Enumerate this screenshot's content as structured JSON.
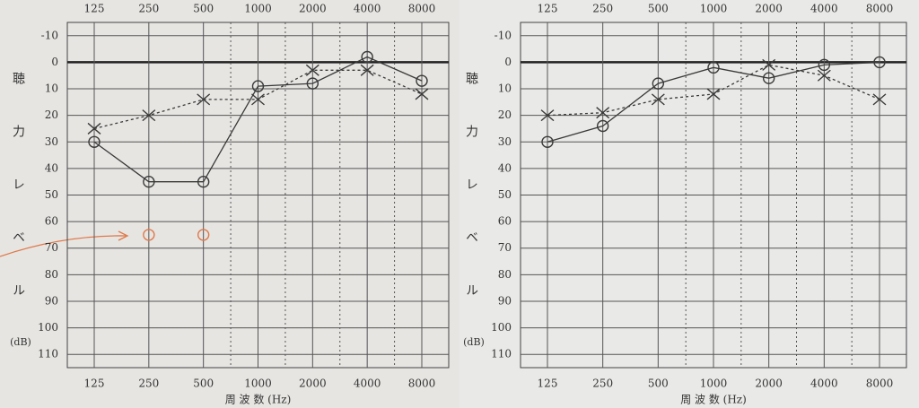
{
  "chart_data": [
    {
      "type": "line",
      "categories": [
        "125",
        "250",
        "500",
        "1000",
        "2000",
        "4000",
        "8000"
      ],
      "y_label": "聴力レベル",
      "y_unit": "(dB)",
      "x_label": "周 波 数 (Hz)",
      "ylim": [
        -15,
        115
      ],
      "y_inverted": true,
      "yticks": [
        -10,
        0,
        10,
        20,
        30,
        40,
        50,
        60,
        70,
        80,
        90,
        100,
        110
      ],
      "reference_line": 0,
      "grid": true,
      "series": [
        {
          "marker": "circle",
          "dashed": false,
          "line": true,
          "color": "#3a3a3a",
          "values": [
            30,
            45,
            45,
            9,
            8,
            -2,
            7
          ]
        },
        {
          "marker": "x",
          "dashed": true,
          "line": true,
          "color": "#3a3a3a",
          "values": [
            25,
            20,
            14,
            14,
            3,
            3,
            12
          ]
        },
        {
          "marker": "circle",
          "dashed": false,
          "line": false,
          "color": "#e0784a",
          "values": [
            null,
            65,
            65,
            null,
            null,
            null,
            null
          ]
        }
      ]
    },
    {
      "type": "line",
      "categories": [
        "125",
        "250",
        "500",
        "1000",
        "2000",
        "4000",
        "8000"
      ],
      "y_label": "聴力レベル",
      "y_unit": "(dB)",
      "x_label": "周 波 数 (Hz)",
      "ylim": [
        -15,
        115
      ],
      "y_inverted": true,
      "yticks": [
        -10,
        0,
        10,
        20,
        30,
        40,
        50,
        60,
        70,
        80,
        90,
        100,
        110
      ],
      "reference_line": 0,
      "grid": true,
      "series": [
        {
          "marker": "circle",
          "dashed": false,
          "line": true,
          "color": "#3a3a3a",
          "values": [
            30,
            24,
            8,
            2,
            6,
            1,
            0
          ]
        },
        {
          "marker": "x",
          "dashed": true,
          "line": true,
          "color": "#3a3a3a",
          "values": [
            20,
            19,
            14,
            12,
            1,
            5,
            14
          ]
        }
      ]
    }
  ]
}
